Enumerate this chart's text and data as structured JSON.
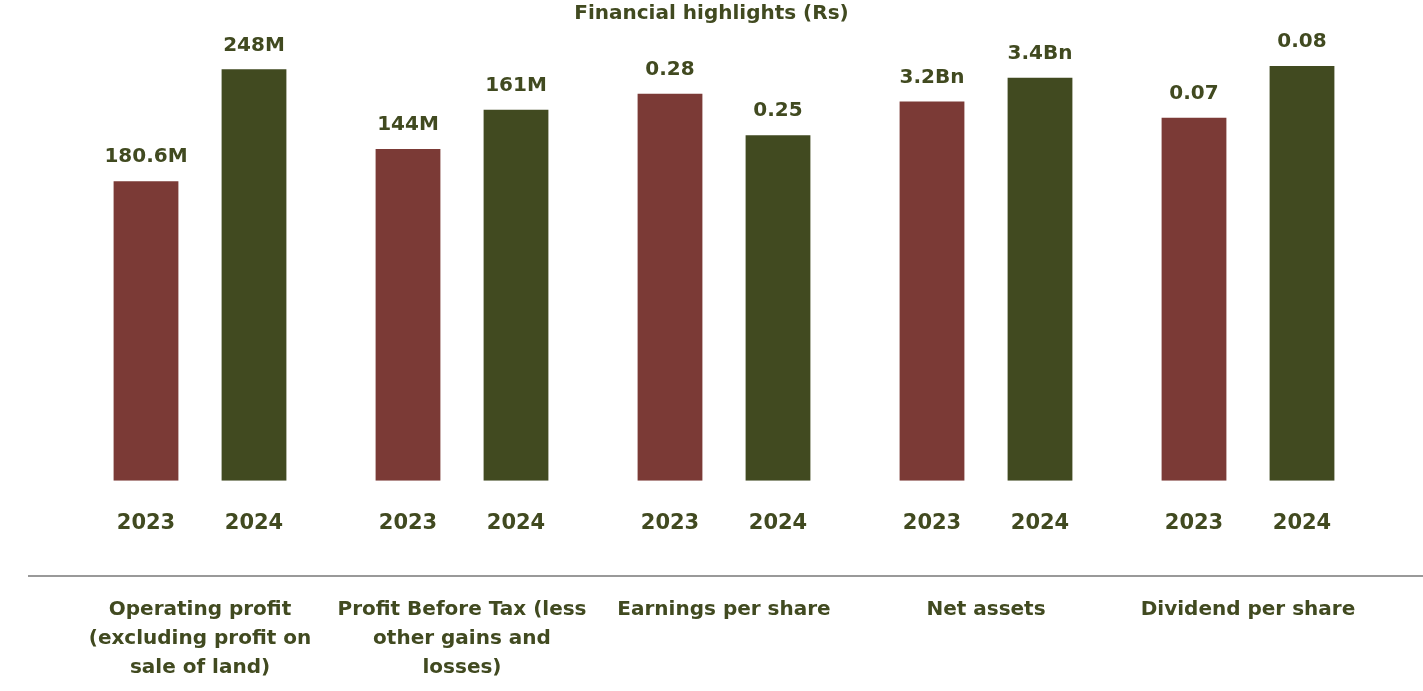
{
  "chart_data": [
    {
      "type": "other",
      "title": "Financial highlights (Rs)"
    },
    {
      "type": "bar",
      "xlabel": "Operating profit (excluding profit on sale of land)",
      "categories": [
        "2023",
        "2024"
      ],
      "values": [
        180.6,
        248
      ],
      "colors": [
        "#7b3a36",
        "#414a20"
      ],
      "value_labels": [
        "180.6M",
        "248M"
      ],
      "tick_labels": "x"
    },
    {
      "type": "bar",
      "xlabel": "Profit Before Tax (less other gains and losses)",
      "categories": [
        "2023",
        "2024"
      ],
      "values": [
        144,
        161
      ],
      "colors": [
        "#7b3a36",
        "#414a20"
      ],
      "value_labels": [
        "144M",
        "161M"
      ],
      "tick_labels": "x"
    },
    {
      "type": "bar",
      "xlabel": "Earnings per share",
      "categories": [
        "2023",
        "2024"
      ],
      "values": [
        0.28,
        0.25
      ],
      "colors": [
        "#7b3a36",
        "#414a20"
      ],
      "data_labels": true,
      "tick_labels": "x"
    },
    {
      "type": "bar",
      "xlabel": "Net assets",
      "categories": [
        "2023",
        "2024"
      ],
      "values": [
        3.2,
        3.4
      ],
      "colors": [
        "#7b3a36",
        "#414a20"
      ],
      "value_labels": [
        "3.2Bn",
        "3.4Bn"
      ],
      "tick_labels": "x"
    },
    {
      "type": "bar",
      "xlabel": "Dividend per share",
      "categories": [
        "2023",
        "2024"
      ],
      "values": [
        0.07,
        0.08
      ],
      "colors": [
        "#7b3a36",
        "#414a20"
      ],
      "data_labels": true,
      "tick_labels": "x"
    }
  ]
}
